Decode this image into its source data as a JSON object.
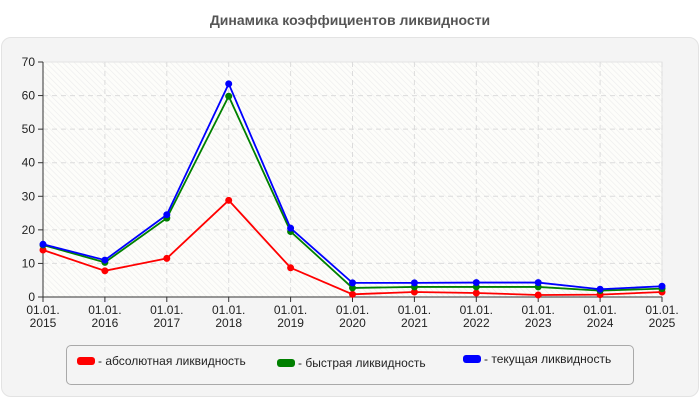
{
  "title": "Динамика коэффициентов ликвидности",
  "legend": {
    "items": [
      {
        "label": "- абсолютная ликвидность",
        "color": "#ff0000"
      },
      {
        "label": "- быстрая ликвидность",
        "color": "#008000"
      },
      {
        "label": "- текущая ликвидность",
        "color": "#0000ff"
      }
    ]
  },
  "chart_data": {
    "type": "line",
    "title": "Динамика коэффициентов ликвидности",
    "xlabel": "",
    "ylabel": "",
    "categories": [
      "01.01. 2015",
      "01.01. 2016",
      "01.01. 2017",
      "01.01. 2018",
      "01.01. 2019",
      "01.01. 2020",
      "01.01. 2021",
      "01.01. 2022",
      "01.01. 2023",
      "01.01. 2024",
      "01.01. 2025"
    ],
    "x_tick_lines": [
      [
        "01.01.",
        "2015"
      ],
      [
        "01.01.",
        "2016"
      ],
      [
        "01.01.",
        "2017"
      ],
      [
        "01.01.",
        "2018"
      ],
      [
        "01.01.",
        "2019"
      ],
      [
        "01.01.",
        "2020"
      ],
      [
        "01.01.",
        "2021"
      ],
      [
        "01.01.",
        "2022"
      ],
      [
        "01.01.",
        "2023"
      ],
      [
        "01.01.",
        "2024"
      ],
      [
        "01.01.",
        "2025"
      ]
    ],
    "ylim": [
      0,
      70
    ],
    "yticks": [
      0,
      10,
      20,
      30,
      40,
      50,
      60,
      70
    ],
    "grid": true,
    "legend_position": "bottom",
    "series": [
      {
        "name": "абсолютная ликвидность",
        "color": "#ff0000",
        "values": [
          14.0,
          7.8,
          11.5,
          28.8,
          8.7,
          0.8,
          1.5,
          1.2,
          0.6,
          0.7,
          1.5
        ]
      },
      {
        "name": "быстрая ликвидность",
        "color": "#008000",
        "values": [
          15.5,
          10.3,
          23.5,
          59.8,
          19.5,
          2.7,
          3.0,
          3.0,
          3.0,
          1.9,
          2.5
        ]
      },
      {
        "name": "текущая ликвидность",
        "color": "#0000ff",
        "values": [
          15.7,
          11.0,
          24.5,
          63.5,
          20.5,
          4.2,
          4.2,
          4.3,
          4.3,
          2.3,
          3.2
        ]
      }
    ]
  }
}
